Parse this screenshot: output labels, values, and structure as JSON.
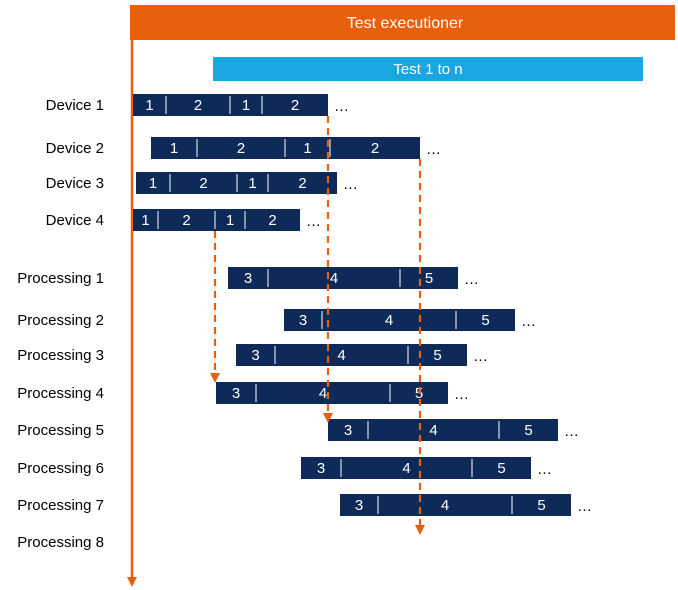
{
  "header": {
    "title": "Test executioner",
    "subtitle": "Test 1 to n"
  },
  "ellipsis": "…",
  "colors": {
    "header_orange": "#e8600e",
    "arrow_orange": "#e8600e",
    "test_blue": "#1aa6e0",
    "bar_navy": "#0d2a59",
    "divider": "#ffffff",
    "label_text": "#000000"
  },
  "rows": [
    {
      "name": "Device 1",
      "segments": [
        "1",
        "2",
        "1",
        "2"
      ]
    },
    {
      "name": "Device 2",
      "segments": [
        "1",
        "2",
        "1",
        "2"
      ]
    },
    {
      "name": "Device 3",
      "segments": [
        "1",
        "2",
        "1",
        "2"
      ]
    },
    {
      "name": "Device 4",
      "segments": [
        "1",
        "2",
        "1",
        "2"
      ]
    },
    {
      "name": "Processing 1",
      "segments": [
        "3",
        "4",
        "5"
      ]
    },
    {
      "name": "Processing 2",
      "segments": [
        "3",
        "4",
        "5"
      ]
    },
    {
      "name": "Processing 3",
      "segments": [
        "3",
        "4",
        "5"
      ]
    },
    {
      "name": "Processing 4",
      "segments": [
        "3",
        "4",
        "5"
      ]
    },
    {
      "name": "Processing 5",
      "segments": [
        "3",
        "4",
        "5"
      ]
    },
    {
      "name": "Processing 6",
      "segments": [
        "3",
        "4",
        "5"
      ]
    },
    {
      "name": "Processing 7",
      "segments": [
        "3",
        "4",
        "5"
      ]
    },
    {
      "name": "Processing 8",
      "segments": []
    }
  ]
}
